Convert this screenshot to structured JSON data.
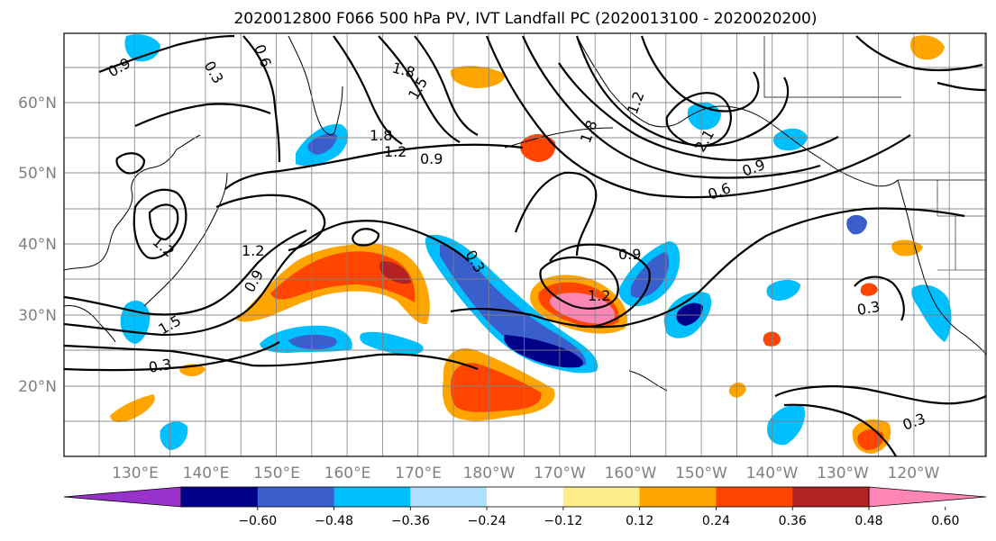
{
  "title": "2020012800 F066 500 hPa PV, IVT Landfall PC (2020013100 - 2020020200)",
  "map": {
    "lat_labels": [
      "60°N",
      "50°N",
      "40°N",
      "30°N",
      "20°N"
    ],
    "lon_labels": [
      "130°E",
      "140°E",
      "150°E",
      "160°E",
      "170°E",
      "180°W",
      "170°W",
      "160°W",
      "150°W",
      "140°W",
      "130°W",
      "120°W"
    ],
    "gridline_color": "#808080",
    "coastline_color": "#000000",
    "contour_color": "#000000",
    "contour_labels": [
      "0.9",
      "0.3",
      "0.6",
      "1.8",
      "1.5",
      "1.8",
      "1.2",
      "0.9",
      "2.1",
      "0.9",
      "0.6",
      "1.2",
      "1.2",
      "0.9",
      "1.5",
      "0.3",
      "0.3",
      "0.9",
      "1.2",
      "0.3",
      "0.3",
      "1.8",
      "1.2"
    ]
  },
  "colorbar": {
    "ticks": [
      "−0.60",
      "−0.48",
      "−0.36",
      "−0.24",
      "−0.12",
      "0.12",
      "0.24",
      "0.36",
      "0.48",
      "0.60"
    ],
    "colors": [
      "#9932cc",
      "#00008b",
      "#3a5fcd",
      "#00bfff",
      "#b0e2ff",
      "#ffffff",
      "#ffec8b",
      "#ffa500",
      "#ff4500",
      "#b22222",
      "#ff85b4"
    ]
  }
}
